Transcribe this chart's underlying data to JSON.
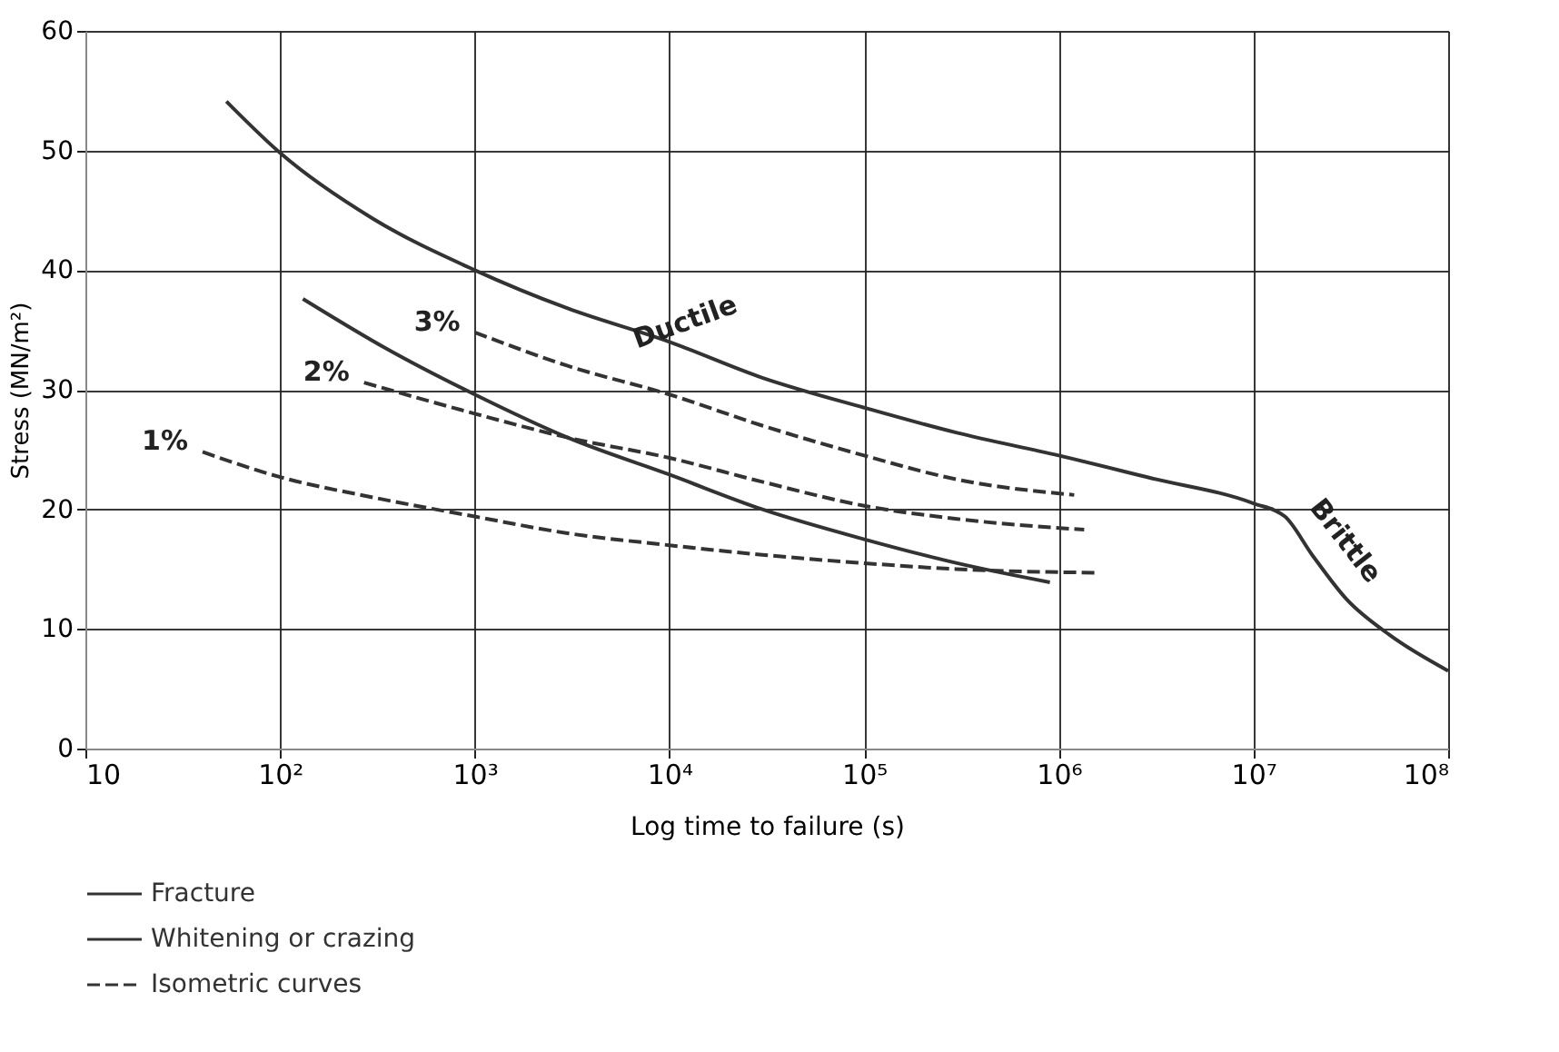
{
  "chart_data": {
    "type": "line",
    "xlabel": "Log time to failure   (s)",
    "ylabel": "Stress (MN/m²)",
    "log": "x",
    "xlim": [
      10,
      100000000
    ],
    "ylim": [
      0,
      60
    ],
    "xticks": [
      10,
      {
        "value": 100,
        "label": "10²"
      },
      {
        "value": 1000,
        "label": "10³"
      },
      {
        "value": 10000,
        "label": "10⁴"
      },
      {
        "value": 100000,
        "label": "10⁵"
      },
      {
        "value": 1000000,
        "label": "10⁶"
      },
      {
        "value": 10000000,
        "label": "10⁷"
      },
      {
        "value": 100000000,
        "label": "10⁸"
      }
    ],
    "yticks": [
      0,
      10,
      20,
      30,
      40,
      50,
      60
    ],
    "grid": true,
    "legend": "bottom",
    "marker": "none",
    "series": [
      {
        "name": "Fracture",
        "color": "#333333",
        "line_style": "solid",
        "x": [
          53,
          100,
          300,
          1000,
          3000,
          10000,
          30000,
          100000,
          300000,
          1000000,
          3000000,
          10000000,
          14500000,
          20000000,
          30000000,
          50000000,
          100000000
        ],
        "values": [
          54.1,
          49.8,
          44.3,
          40,
          36.8,
          34,
          31,
          28.5,
          26.4,
          24.5,
          22.6,
          20.5,
          19.4,
          16.2,
          12.5,
          9.5,
          6.5
        ]
      },
      {
        "name": "Whitening or crazing",
        "color": "#333333",
        "line_style": "solid",
        "x": [
          131,
          355,
          1000,
          3000,
          10000,
          30000,
          100000,
          300000,
          900000
        ],
        "values": [
          37.6,
          33.4,
          29.6,
          26,
          22.9,
          20,
          17.5,
          15.5,
          13.9
        ]
      },
      {
        "name": "3%",
        "color": "#333333",
        "line_style": "dashed",
        "x": [
          1000,
          3000,
          10000,
          30000,
          100000,
          300000,
          1200000
        ],
        "values": [
          34.8,
          32,
          29.6,
          27,
          24.5,
          22.5,
          21.2
        ]
      },
      {
        "name": "2%",
        "color": "#333333",
        "line_style": "dashed",
        "x": [
          270,
          1000,
          3000,
          10000,
          30000,
          100000,
          300000,
          1350000
        ],
        "values": [
          30.6,
          28,
          26,
          24.3,
          22.3,
          20.3,
          19.2,
          18.3
        ]
      },
      {
        "name": "1%",
        "color": "#333333",
        "line_style": "dashed",
        "x": [
          40,
          100,
          300,
          1000,
          3000,
          10000,
          30000,
          100000,
          300000,
          1600000
        ],
        "values": [
          24.8,
          22.7,
          21,
          19.4,
          18,
          17,
          16.2,
          15.5,
          15,
          14.7
        ]
      }
    ],
    "annotations": [
      "Ductile",
      "Brittle",
      "Isometric curves"
    ]
  }
}
